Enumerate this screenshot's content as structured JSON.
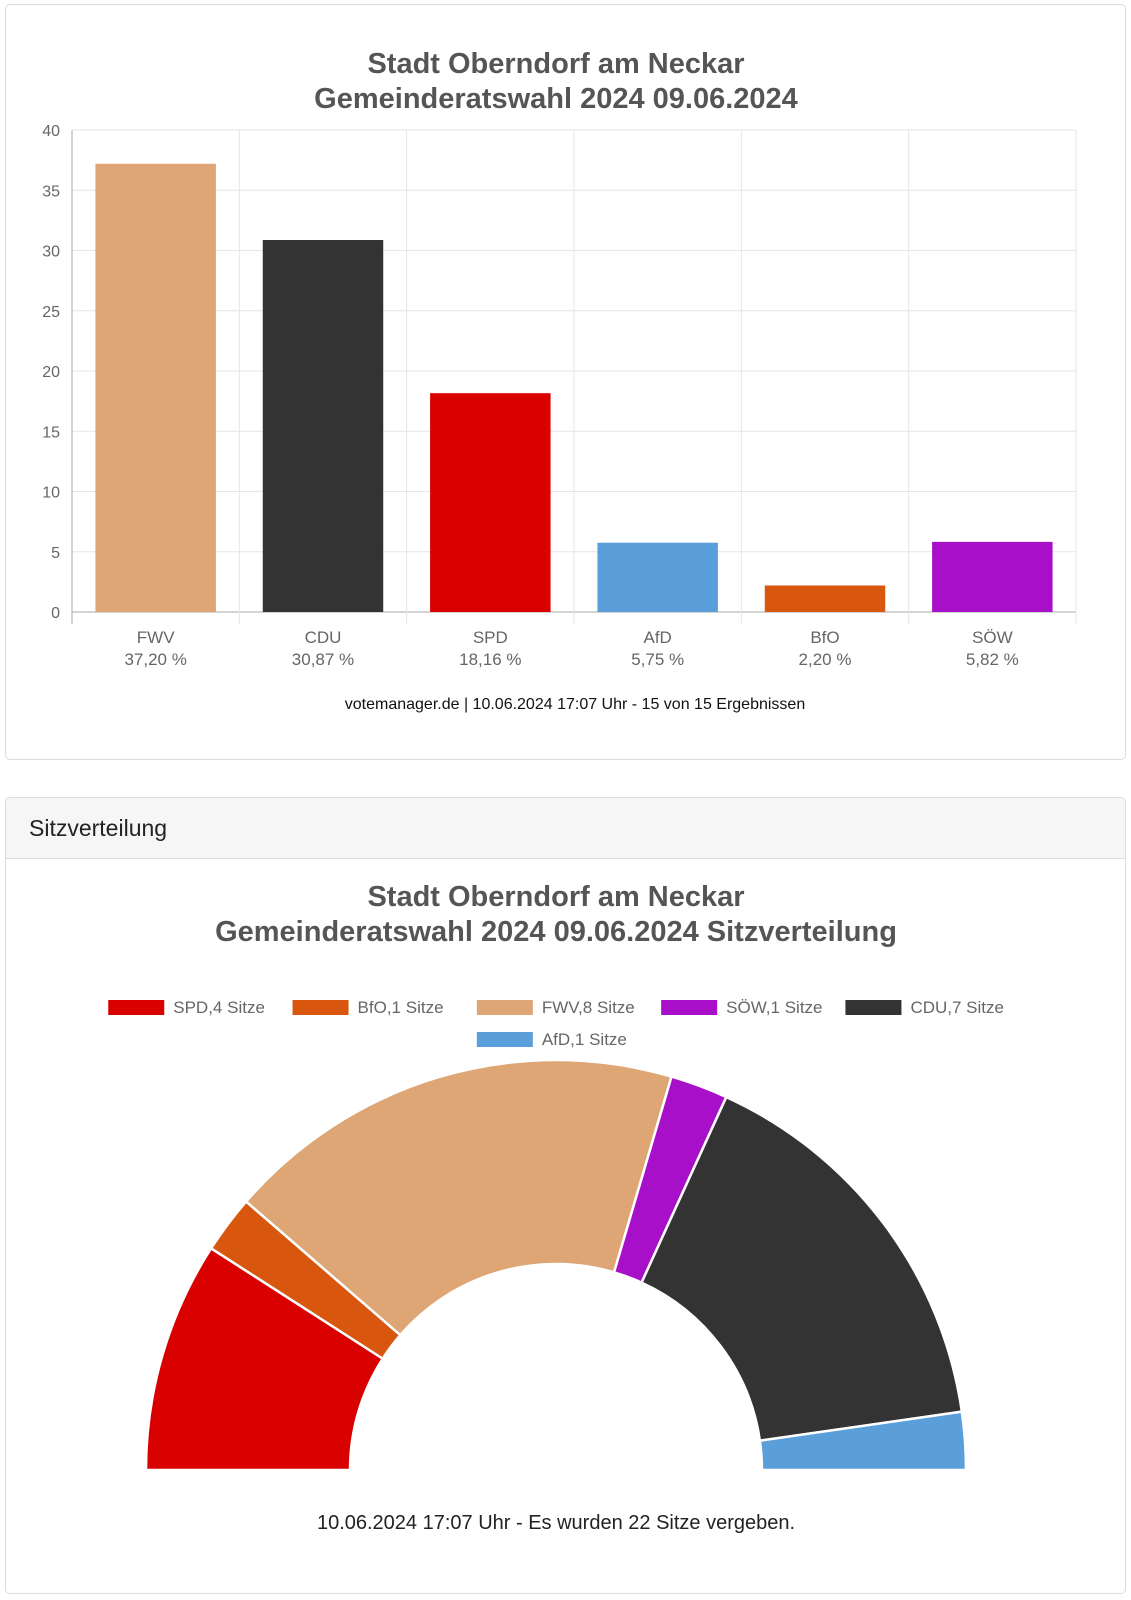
{
  "bar_panel": {
    "title_line1": "Stadt Oberndorf am Neckar",
    "title_line2": "Gemeinderatswahl 2024 09.06.2024",
    "credit": "votemanager.de | 10.06.2024 17:07 Uhr - 15 von 15 Ergebnissen"
  },
  "seat_panel": {
    "header": "Sitzverteilung",
    "title_line1": "Stadt Oberndorf am Neckar",
    "title_line2": "Gemeinderatswahl 2024 09.06.2024 Sitzverteilung",
    "footer": "10.06.2024 17:07 Uhr - Es wurden 22 Sitze vergeben."
  },
  "chart_data": [
    {
      "type": "bar",
      "title": "Stadt Oberndorf am Neckar Gemeinderatswahl 2024 09.06.2024",
      "categories": [
        "FWV",
        "CDU",
        "SPD",
        "AfD",
        "BfO",
        "SÖW"
      ],
      "value_labels": [
        "37,20 %",
        "30,87 %",
        "18,16 %",
        "5,75 %",
        "2,20 %",
        "5,82 %"
      ],
      "values": [
        37.2,
        30.87,
        18.16,
        5.75,
        2.2,
        5.82
      ],
      "colors": [
        "#dea674",
        "#333333",
        "#d90000",
        "#5b9fda",
        "#d9560e",
        "#a80fc8"
      ],
      "ylim": [
        0,
        40
      ],
      "yticks": [
        0,
        5,
        10,
        15,
        20,
        25,
        30,
        35,
        40
      ],
      "xlabel": "",
      "ylabel": "",
      "grid": true
    },
    {
      "type": "pie",
      "variant": "half-donut",
      "title": "Stadt Oberndorf am Neckar Gemeinderatswahl 2024 09.06.2024 Sitzverteilung",
      "slices": [
        {
          "label": "SPD",
          "value": 4,
          "legend": "SPD,4 Sitze",
          "color": "#d90000"
        },
        {
          "label": "BfO",
          "value": 1,
          "legend": "BfO,1 Sitze",
          "color": "#d9560e"
        },
        {
          "label": "FWV",
          "value": 8,
          "legend": "FWV,8 Sitze",
          "color": "#dea674"
        },
        {
          "label": "SÖW",
          "value": 1,
          "legend": "SÖW,1 Sitze",
          "color": "#a80fc8"
        },
        {
          "label": "CDU",
          "value": 7,
          "legend": "CDU,7 Sitze",
          "color": "#333333"
        },
        {
          "label": "AfD",
          "value": 1,
          "legend": "AfD,1 Sitze",
          "color": "#5b9fda"
        }
      ],
      "total": 22,
      "legend_position": "top"
    }
  ]
}
